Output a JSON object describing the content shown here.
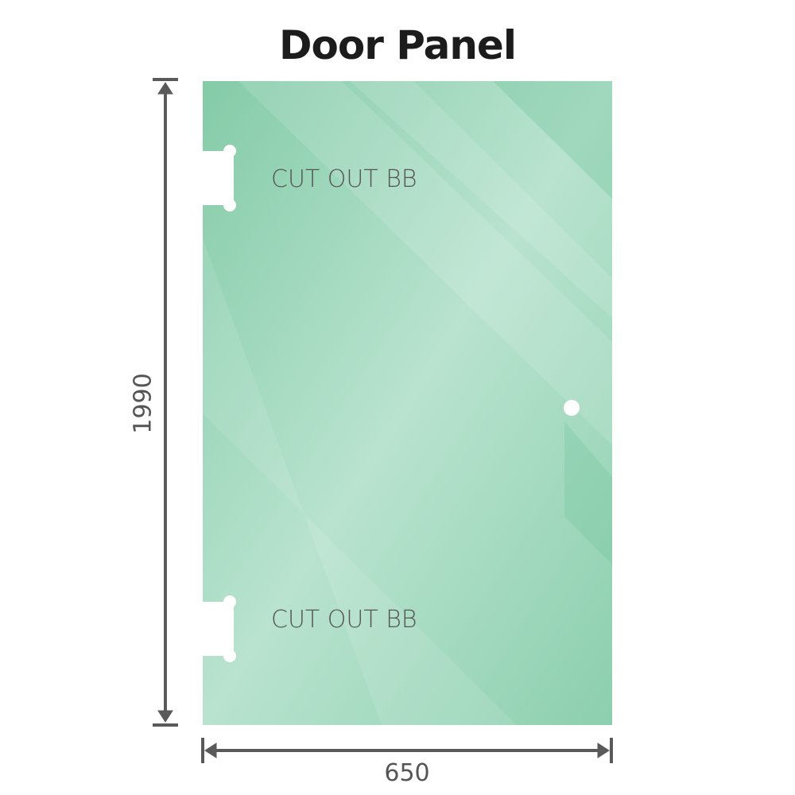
{
  "title": "Door Panel",
  "labels": {
    "cutout_top": "CUT OUT BB",
    "cutout_bottom": "CUT OUT BB"
  },
  "dimensions": {
    "height": "1990",
    "width": "650"
  },
  "colors": {
    "glass": "#8fd0b0",
    "glass_light": "#bfe6d3",
    "dimension_line": "#5a5a5a",
    "text": "#555555"
  }
}
